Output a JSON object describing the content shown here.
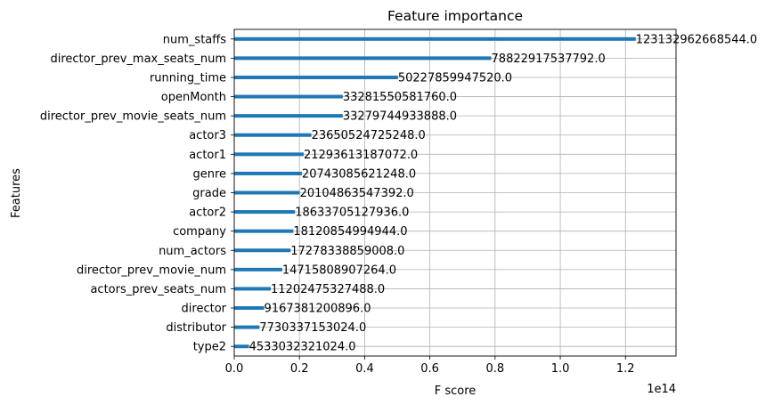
{
  "chart_data": {
    "type": "bar",
    "orientation": "horizontal",
    "title": "Feature importance",
    "xlabel": "F score",
    "ylabel": "Features",
    "x_offset_text": "1e14",
    "xlim": [
      0,
      1.355
    ],
    "x_ticks": [
      0.0,
      0.2,
      0.4,
      0.6,
      0.8,
      1.0,
      1.2
    ],
    "x_tick_labels": [
      "0.0",
      "0.2",
      "0.4",
      "0.6",
      "0.8",
      "1.0",
      "1.2"
    ],
    "grid": true,
    "bar_color": "#1f77b4",
    "categories": [
      "num_staffs",
      "director_prev_max_seats_num",
      "running_time",
      "openMonth",
      "director_prev_movie_seats_num",
      "actor3",
      "actor1",
      "genre",
      "grade",
      "actor2",
      "company",
      "num_actors",
      "director_prev_movie_num",
      "actors_prev_seats_num",
      "director",
      "distributor",
      "type2"
    ],
    "values": [
      123132962668544.0,
      78822917537792.0,
      50227859947520.0,
      33281550581760.0,
      33279744933888.0,
      23650524725248.0,
      21293613187072.0,
      20743085621248.0,
      20104863547392.0,
      18633705127936.0,
      18120854994944.0,
      17278338859008.0,
      14715808907264.0,
      11202475327488.0,
      9167381200896.0,
      7730337153024.0,
      4533032321024.0
    ],
    "value_labels": [
      "123132962668544.0",
      "78822917537792.0",
      "50227859947520.0",
      "33281550581760.0",
      "33279744933888.0",
      "23650524725248.0",
      "21293613187072.0",
      "20743085621248.0",
      "20104863547392.0",
      "18633705127936.0",
      "18120854994944.0",
      "17278338859008.0",
      "14715808907264.0",
      "11202475327488.0",
      "9167381200896.0",
      "7730337153024.0",
      "4533032321024.0"
    ]
  }
}
